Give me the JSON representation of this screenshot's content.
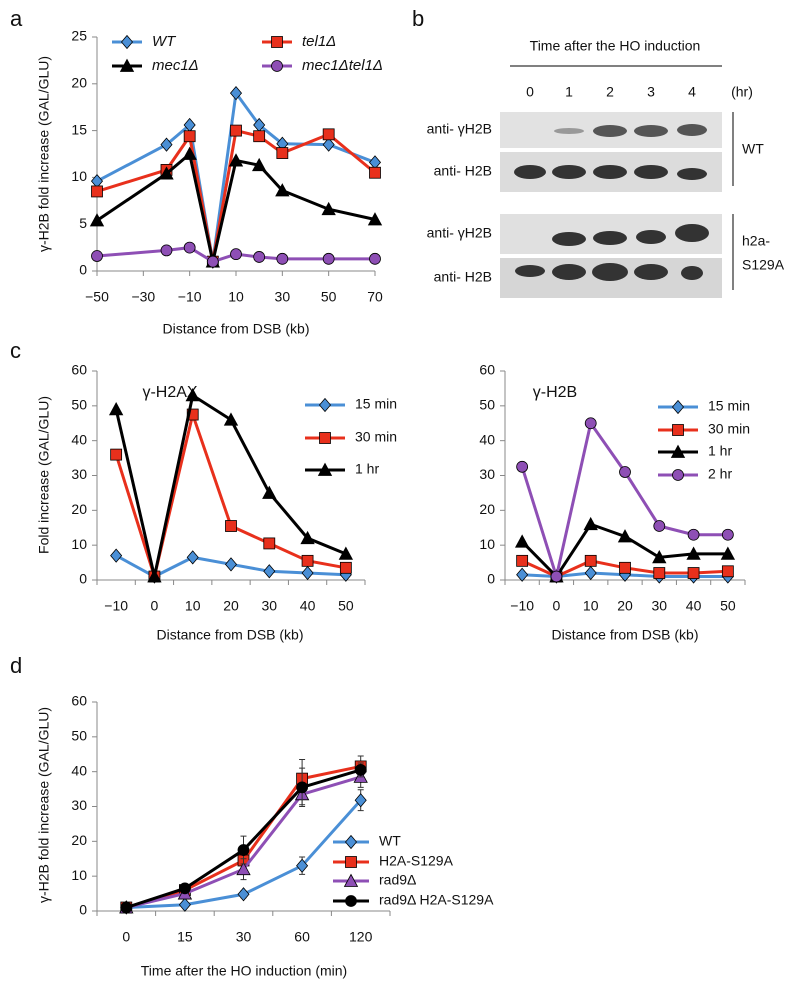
{
  "panel_labels": [
    "a",
    "b",
    "c",
    "d"
  ],
  "blot": {
    "title": "Time after the HO induction",
    "times": [
      "0",
      "1",
      "2",
      "3",
      "4"
    ],
    "unit": "(hr)",
    "row_labels": [
      "anti- γH2B",
      "anti- H2B",
      "anti- γH2B",
      "anti- H2B"
    ],
    "right_labels": [
      "WT",
      "h2a-",
      "S129A"
    ]
  },
  "chart_data": [
    {
      "type": "line",
      "xlabel": "Distance from DSB (kb)",
      "ylabel": "γ-H2B fold increase (GAL/GLU)",
      "x": [
        -50,
        -20,
        -10,
        0,
        10,
        20,
        30,
        50,
        70
      ],
      "xlim": [
        -50,
        70
      ],
      "xticks": [
        {
          "value": -50,
          "label": "−50"
        },
        {
          "value": -30,
          "label": "−30"
        },
        {
          "value": -10,
          "label": "−10"
        },
        10,
        30,
        50,
        70
      ],
      "ylim": [
        0,
        25
      ],
      "yticks": [
        0,
        5,
        10,
        15,
        20,
        25
      ],
      "series": [
        {
          "name": "WT",
          "color": "#4a8fd6",
          "marker": "diamond",
          "values": [
            9.6,
            13.5,
            15.6,
            1.0,
            19.0,
            15.6,
            13.6,
            13.5,
            11.6
          ]
        },
        {
          "name": "tel1Δ",
          "color": "#e8301c",
          "marker": "square",
          "values": [
            8.5,
            10.8,
            14.4,
            1.0,
            15.0,
            14.4,
            12.6,
            14.6,
            10.5
          ]
        },
        {
          "name": "mec1Δ",
          "color": "#000000",
          "marker": "triangle",
          "values": [
            5.4,
            10.4,
            12.5,
            1.0,
            11.8,
            11.3,
            8.6,
            6.6,
            5.5
          ]
        },
        {
          "name": "mec1Δtel1Δ",
          "color": "#8e4fb5",
          "marker": "circle",
          "values": [
            1.6,
            2.2,
            2.5,
            1.0,
            1.8,
            1.5,
            1.3,
            1.3,
            1.3
          ]
        }
      ]
    },
    {
      "type": "line",
      "title": "γ-H2AX",
      "xlabel": "Distance from DSB (kb)",
      "ylabel": "Fold increase (GAL/GLU)",
      "categories": [
        "−10",
        "0",
        "10",
        "20",
        "30",
        "40",
        "50"
      ],
      "ylim": [
        0,
        60
      ],
      "yticks": [
        0,
        10,
        20,
        30,
        40,
        50,
        60
      ],
      "series": [
        {
          "name": "15 min",
          "color": "#4a8fd6",
          "marker": "diamond",
          "values": [
            7,
            1,
            6.5,
            4.5,
            2.5,
            2,
            1.5
          ]
        },
        {
          "name": "30 min",
          "color": "#e8301c",
          "marker": "square",
          "values": [
            36,
            1,
            47.5,
            15.5,
            10.5,
            5.5,
            3.5
          ]
        },
        {
          "name": "1 hr",
          "color": "#000000",
          "marker": "triangle",
          "values": [
            49,
            1,
            53,
            46,
            25,
            12,
            7.5
          ]
        }
      ]
    },
    {
      "type": "line",
      "title": "γ-H2B",
      "xlabel": "Distance from DSB (kb)",
      "categories": [
        "−10",
        "0",
        "10",
        "20",
        "30",
        "40",
        "50"
      ],
      "ylim": [
        0,
        60
      ],
      "yticks": [
        0,
        10,
        20,
        30,
        40,
        50,
        60
      ],
      "series": [
        {
          "name": "15 min",
          "color": "#4a8fd6",
          "marker": "diamond",
          "values": [
            1.5,
            1,
            2,
            1.5,
            1,
            1,
            1
          ]
        },
        {
          "name": "30 min",
          "color": "#e8301c",
          "marker": "square",
          "values": [
            5.5,
            1,
            5.5,
            3.5,
            2,
            2,
            2.5
          ]
        },
        {
          "name": "1 hr",
          "color": "#000000",
          "marker": "triangle",
          "values": [
            11,
            1,
            16,
            12.5,
            6.5,
            7.5,
            7.5
          ]
        },
        {
          "name": "2 hr",
          "color": "#8e4fb5",
          "marker": "circle",
          "values": [
            32.5,
            1,
            45,
            31,
            15.5,
            13,
            13
          ]
        }
      ]
    },
    {
      "type": "line",
      "xlabel": "Time after the HO induction (min)",
      "ylabel": "γ-H2B fold increase (GAL/GLU)",
      "categories": [
        "0",
        "15",
        "30",
        "60",
        "120"
      ],
      "ylim": [
        0,
        60
      ],
      "yticks": [
        0,
        10,
        20,
        30,
        40,
        50,
        60
      ],
      "series": [
        {
          "name": "WT",
          "color": "#4a8fd6",
          "marker": "diamond",
          "values": [
            1,
            1.8,
            4.8,
            13,
            31.8
          ],
          "errors": [
            0.2,
            0.4,
            1,
            2.5,
            3
          ]
        },
        {
          "name": "H2A-S129A",
          "color": "#e8301c",
          "marker": "square",
          "values": [
            1,
            6,
            14.5,
            38,
            41.5
          ],
          "errors": [
            0.2,
            1,
            3,
            5.5,
            3
          ]
        },
        {
          "name": "rad9Δ",
          "color": "#8e4fb5",
          "marker": "triangle",
          "values": [
            1,
            5,
            12,
            33.5,
            38.5
          ],
          "errors": [
            0.2,
            1,
            3,
            3,
            3
          ]
        },
        {
          "name": "rad9Δ H2A-S129A",
          "color": "#000000",
          "marker": "circle",
          "values": [
            1,
            6.5,
            17.5,
            35.5,
            40.5
          ],
          "errors": [
            0.2,
            1,
            4,
            5.5,
            2
          ]
        }
      ]
    }
  ]
}
